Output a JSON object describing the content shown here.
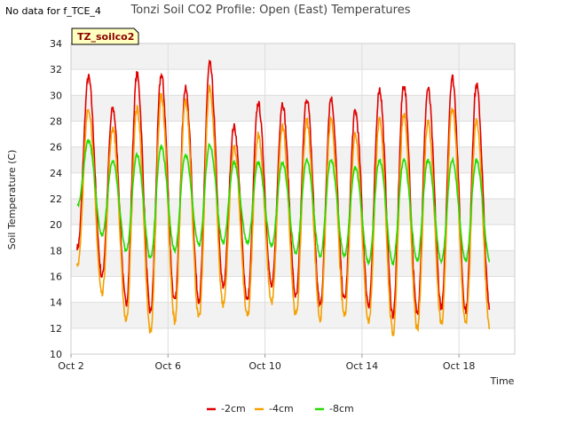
{
  "no_data_note": "No data for f_TCE_4",
  "chart_data": {
    "type": "line",
    "title": "Tonzi Soil CO2 Profile: Open (East) Temperatures",
    "xlabel": "Time",
    "ylabel": "Soil Temperature (C)",
    "annotation": "TZ_soilco2",
    "xlim": [
      0,
      18.3
    ],
    "ylim": [
      10,
      34
    ],
    "yticks": [
      10,
      12,
      14,
      16,
      18,
      20,
      22,
      24,
      26,
      28,
      30,
      32,
      34
    ],
    "xticks": [
      {
        "value": 0,
        "label": "Oct 2"
      },
      {
        "value": 4,
        "label": "Oct 6"
      },
      {
        "value": 8,
        "label": "Oct 10"
      },
      {
        "value": 12,
        "label": "Oct 14"
      },
      {
        "value": 16,
        "label": "Oct 18"
      }
    ],
    "grid": true,
    "legend_position": "bottom-center",
    "x_start": 0.25,
    "x_end": 17.25,
    "series": [
      {
        "name": "-2cm",
        "color": "#e00000",
        "peaks": [
          31.4,
          29.0,
          31.6,
          31.6,
          30.5,
          32.4,
          27.6,
          29.4,
          29.4,
          29.8,
          29.8,
          28.8,
          30.5,
          30.8,
          30.5,
          31.4,
          30.8,
          31.2
        ],
        "troughs": [
          18.3,
          16.0,
          14.0,
          13.2,
          14.0,
          14.2,
          15.2,
          14.2,
          15.2,
          14.4,
          13.8,
          14.2,
          13.8,
          13.0,
          13.2,
          13.6,
          13.4,
          13.4,
          16.3
        ]
      },
      {
        "name": "-4cm",
        "color": "#f5a000",
        "peaks": [
          29.0,
          27.5,
          29.0,
          30.0,
          29.5,
          30.5,
          26.0,
          27.0,
          27.5,
          28.0,
          28.0,
          27.0,
          28.0,
          28.5,
          28.0,
          29.0,
          28.0,
          28.5
        ],
        "troughs": [
          17.0,
          14.7,
          12.6,
          11.7,
          12.6,
          12.7,
          13.8,
          12.9,
          14.0,
          13.0,
          12.7,
          13.0,
          12.5,
          11.6,
          12.0,
          12.3,
          12.3,
          12.0,
          14.8
        ]
      },
      {
        "name": "-8cm",
        "color": "#22dd00",
        "peaks": [
          26.5,
          24.9,
          25.4,
          26.0,
          25.4,
          26.2,
          24.8,
          24.8,
          24.8,
          25.0,
          25.0,
          24.4,
          25.0,
          25.0,
          25.0,
          25.0,
          25.0,
          25.0
        ],
        "troughs": [
          21.5,
          19.2,
          18.0,
          17.4,
          18.0,
          18.4,
          18.6,
          18.6,
          18.4,
          17.8,
          17.6,
          17.6,
          17.0,
          17.0,
          17.2,
          17.2,
          17.2,
          17.2,
          20.2
        ]
      }
    ]
  }
}
